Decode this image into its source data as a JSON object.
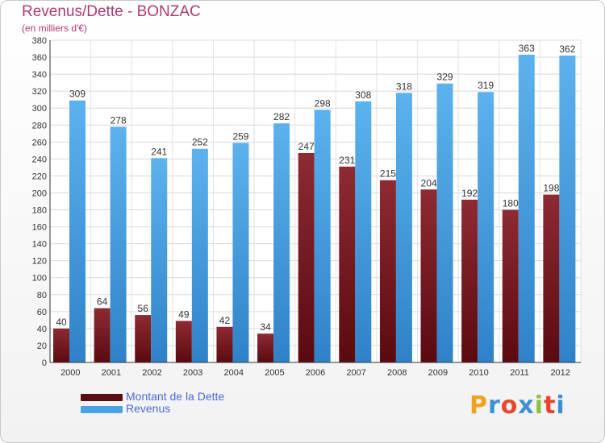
{
  "header": {
    "title": "Revenus/Dette - BONZAC",
    "subtitle": "(en milliers d'€)"
  },
  "chart_data": {
    "type": "bar",
    "categories": [
      "2000",
      "2001",
      "2002",
      "2003",
      "2004",
      "2005",
      "2006",
      "2007",
      "2008",
      "2009",
      "2010",
      "2011",
      "2012"
    ],
    "series": [
      {
        "name": "Montant de la Dette",
        "color": "#7a1c24",
        "values": [
          40,
          64,
          56,
          49,
          42,
          34,
          247,
          231,
          215,
          204,
          192,
          180,
          198
        ]
      },
      {
        "name": "Revenus",
        "color": "#4aa3e6",
        "values": [
          309,
          278,
          241,
          252,
          259,
          282,
          298,
          308,
          318,
          329,
          319,
          363,
          362
        ]
      }
    ],
    "title": "Revenus/Dette - BONZAC",
    "ylabel": "(en milliers d'€)",
    "ylim": [
      0,
      380
    ],
    "ytick_step": 20,
    "grid": true,
    "legend_position": "bottom-left"
  },
  "legend": {
    "items": [
      {
        "label": "Montant de la Dette",
        "color": "#5a0e14"
      },
      {
        "label": "Revenus",
        "color": "#4aa3e6"
      }
    ]
  },
  "logo": {
    "letters": [
      "P",
      "r",
      "o",
      "x",
      "i",
      "t",
      "i"
    ],
    "colors": [
      "#f0a21c",
      "#3d8fd6",
      "#e8452c",
      "#3d8fd6",
      "#8ac43f",
      "#e8452c",
      "#3d8fd6"
    ]
  }
}
